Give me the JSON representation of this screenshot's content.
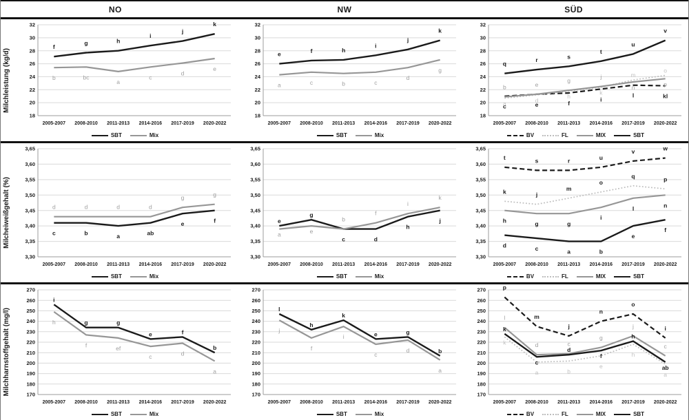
{
  "figure": {
    "columns": [
      "NO",
      "NW",
      "SÜD"
    ],
    "categories": [
      "2005-2007",
      "2008-2010",
      "2011-2013",
      "2014-2016",
      "2017-2019",
      "2020-2022"
    ],
    "colors": {
      "black": "#1a1a1a",
      "gray": "#969696",
      "light_gray": "#bfbfbf",
      "grid": "#d9d9d9",
      "axis": "#9b9b9b",
      "label_gray": "#9f9f9f",
      "label_light": "#c2c2c2",
      "rule": "#111111"
    },
    "styles": {
      "solid_black": {
        "stroke": "#1a1a1a",
        "width": 2.4,
        "dash": ""
      },
      "solid_gray": {
        "stroke": "#969696",
        "width": 2.2,
        "dash": ""
      },
      "dashed_black": {
        "stroke": "#1a1a1a",
        "width": 2.2,
        "dash": "7 4"
      },
      "dotted_light": {
        "stroke": "#bdbdbd",
        "width": 1.7,
        "dash": "1.8 2.6"
      }
    },
    "rows": [
      {
        "ylabel": "Milchleistung (kg/d)",
        "ymin": 18,
        "ymax": 32,
        "yticks": [
          "18",
          "20",
          "22",
          "24",
          "26",
          "28",
          "30",
          "32"
        ]
      },
      {
        "ylabel": "Milcheiweißgehalt (%)",
        "ymin": 3.3,
        "ymax": 3.65,
        "yticks": [
          "3,30",
          "3,35",
          "3,40",
          "3,45",
          "3,50",
          "3,55",
          "3,60",
          "3,65"
        ]
      },
      {
        "ylabel": "Milchharnstoffgehalt (mg/l)",
        "ymin": 170,
        "ymax": 270,
        "yticks": [
          "170",
          "180",
          "190",
          "200",
          "210",
          "220",
          "230",
          "240",
          "250",
          "260",
          "270"
        ]
      }
    ]
  },
  "chart_data": [
    {
      "type": "line",
      "row": 0,
      "col": 0,
      "region": "NO",
      "metric": "milchleistung",
      "ylabel": "Milchleistung (kg/d)",
      "ylim": [
        18,
        32
      ],
      "grid": true,
      "legend_position": "bottom",
      "categories": [
        "2005-2007",
        "2008-2010",
        "2011-2013",
        "2014-2016",
        "2017-2019",
        "2020-2022"
      ],
      "series": [
        {
          "name": "SBT",
          "style": "solid_black",
          "label_color": "black",
          "values": [
            27.1,
            27.7,
            28.0,
            28.8,
            29.5,
            30.6
          ],
          "point_labels": [
            "f",
            "g",
            "h",
            "i",
            "j",
            "k"
          ],
          "label_pos": [
            "a2",
            "a2",
            "a2",
            "a2",
            "a2",
            "a2"
          ]
        },
        {
          "name": "Mix",
          "style": "solid_gray",
          "label_color": "gray",
          "values": [
            25.4,
            25.5,
            24.8,
            25.5,
            26.1,
            26.8
          ],
          "point_labels": [
            "b",
            "bc",
            "a",
            "c",
            "d",
            "e"
          ],
          "label_pos": [
            "b2",
            "b2",
            "b2",
            "b2",
            "b2",
            "b2"
          ]
        }
      ]
    },
    {
      "type": "line",
      "row": 0,
      "col": 1,
      "region": "NW",
      "metric": "milchleistung",
      "ylabel": "Milchleistung (kg/d)",
      "ylim": [
        18,
        32
      ],
      "grid": true,
      "legend_position": "bottom",
      "categories": [
        "2005-2007",
        "2008-2010",
        "2011-2013",
        "2014-2016",
        "2017-2019",
        "2020-2022"
      ],
      "series": [
        {
          "name": "SBT",
          "style": "solid_black",
          "label_color": "black",
          "values": [
            26.0,
            26.5,
            26.6,
            27.3,
            28.2,
            29.6
          ],
          "point_labels": [
            "e",
            "f",
            "h",
            "i",
            "j",
            "k"
          ],
          "label_pos": [
            "a2",
            "a2",
            "a2",
            "a2",
            "a2",
            "a2"
          ]
        },
        {
          "name": "Mix",
          "style": "solid_gray",
          "label_color": "gray",
          "values": [
            24.3,
            24.7,
            24.5,
            24.7,
            25.4,
            26.6
          ],
          "point_labels": [
            "a",
            "c",
            "b",
            "c",
            "d",
            "g"
          ],
          "label_pos": [
            "b2",
            "b2",
            "b2",
            "b2",
            "b2",
            "b2"
          ]
        }
      ]
    },
    {
      "type": "line",
      "row": 0,
      "col": 2,
      "region": "SÜD",
      "metric": "milchleistung",
      "ylabel": "Milchleistung (kg/d)",
      "ylim": [
        18,
        32
      ],
      "grid": true,
      "legend_position": "bottom",
      "categories": [
        "2005-2007",
        "2008-2010",
        "2011-2013",
        "2014-2016",
        "2017-2019",
        "2020-2022"
      ],
      "series": [
        {
          "name": "BV",
          "style": "dashed_black",
          "label_color": "black",
          "values": [
            21.0,
            21.3,
            21.5,
            22.1,
            22.7,
            22.6
          ],
          "point_labels": [
            "c",
            "e",
            "f",
            "i",
            "l",
            "kl"
          ],
          "label_pos": [
            "b2",
            "b2",
            "b2",
            "b2",
            "b2",
            "b2"
          ]
        },
        {
          "name": "FL",
          "style": "dotted_light",
          "label_color": "light",
          "values": [
            20.7,
            21.2,
            21.8,
            22.4,
            23.5,
            24.2
          ],
          "point_labels": [
            "a",
            "d",
            "h",
            "k",
            "m",
            "o"
          ],
          "label_pos": [
            "b",
            "b",
            "b",
            "b",
            "a",
            "a"
          ]
        },
        {
          "name": "MIX",
          "style": "solid_gray",
          "label_color": "gray",
          "values": [
            20.9,
            21.3,
            21.9,
            22.5,
            23.2,
            23.7
          ],
          "point_labels": [
            "b",
            "e",
            "g",
            "j",
            "n",
            "p"
          ],
          "label_pos": [
            "a2",
            "a2",
            "a2",
            "a2",
            "b",
            "b"
          ]
        },
        {
          "name": "SBT",
          "style": "solid_black",
          "label_color": "black",
          "values": [
            24.5,
            25.1,
            25.6,
            26.4,
            27.5,
            29.6
          ],
          "point_labels": [
            "q",
            "r",
            "s",
            "t",
            "u",
            "v"
          ],
          "label_pos": [
            "a2",
            "a2",
            "a2",
            "a2",
            "a2",
            "a2"
          ]
        }
      ]
    },
    {
      "type": "line",
      "row": 1,
      "col": 0,
      "region": "NO",
      "metric": "milcheiweissgehalt",
      "ylabel": "Milcheiweißgehalt (%)",
      "ylim": [
        3.3,
        3.65
      ],
      "grid": true,
      "legend_position": "bottom",
      "categories": [
        "2005-2007",
        "2008-2010",
        "2011-2013",
        "2014-2016",
        "2017-2019",
        "2020-2022"
      ],
      "series": [
        {
          "name": "SBT",
          "style": "solid_black",
          "label_color": "black",
          "values": [
            3.41,
            3.41,
            3.4,
            3.41,
            3.44,
            3.45
          ],
          "point_labels": [
            "c",
            "b",
            "a",
            "ab",
            "e",
            "f"
          ],
          "label_pos": [
            "b2",
            "b2",
            "b2",
            "b2",
            "b2",
            "b2"
          ]
        },
        {
          "name": "Mix",
          "style": "solid_gray",
          "label_color": "gray",
          "values": [
            3.43,
            3.43,
            3.43,
            3.43,
            3.46,
            3.47
          ],
          "point_labels": [
            "d",
            "d",
            "d",
            "d",
            "g",
            "g"
          ],
          "label_pos": [
            "a2",
            "a2",
            "a2",
            "a2",
            "a2",
            "a2"
          ]
        }
      ]
    },
    {
      "type": "line",
      "row": 1,
      "col": 1,
      "region": "NW",
      "metric": "milcheiweissgehalt",
      "ylabel": "Milcheiweißgehalt (%)",
      "ylim": [
        3.3,
        3.65
      ],
      "grid": true,
      "legend_position": "bottom",
      "categories": [
        "2005-2007",
        "2008-2010",
        "2011-2013",
        "2014-2016",
        "2017-2019",
        "2020-2022"
      ],
      "series": [
        {
          "name": "SBT",
          "style": "solid_black",
          "label_color": "black",
          "values": [
            3.4,
            3.42,
            3.39,
            3.39,
            3.43,
            3.45
          ],
          "point_labels": [
            "e",
            "g",
            "c",
            "d",
            "h",
            "j"
          ],
          "label_pos": [
            "a",
            "a",
            "b2",
            "b2",
            "b2",
            "b2"
          ]
        },
        {
          "name": "Mix",
          "style": "solid_gray",
          "label_color": "gray",
          "values": [
            3.39,
            3.4,
            3.39,
            3.41,
            3.44,
            3.46
          ],
          "point_labels": [
            "a",
            "e",
            "b",
            "f",
            "i",
            "k"
          ],
          "label_pos": [
            "b",
            "b",
            "a2",
            "a2",
            "a2",
            "a2"
          ]
        }
      ]
    },
    {
      "type": "line",
      "row": 1,
      "col": 2,
      "region": "SÜD",
      "metric": "milcheiweissgehalt",
      "ylabel": "Milcheiweißgehalt (%)",
      "ylim": [
        3.3,
        3.65
      ],
      "grid": true,
      "legend_position": "bottom",
      "categories": [
        "2005-2007",
        "2008-2010",
        "2011-2013",
        "2014-2016",
        "2017-2019",
        "2020-2022"
      ],
      "series": [
        {
          "name": "BV",
          "style": "dashed_black",
          "label_color": "black",
          "values": [
            3.59,
            3.58,
            3.58,
            3.59,
            3.61,
            3.62
          ],
          "point_labels": [
            "t",
            "s",
            "r",
            "u",
            "v",
            "w"
          ],
          "label_pos": [
            "a2",
            "a2",
            "a2",
            "a2",
            "a2",
            "a2"
          ]
        },
        {
          "name": "FL",
          "style": "dotted_light",
          "label_color": "black",
          "values": [
            3.48,
            3.47,
            3.49,
            3.51,
            3.53,
            3.52
          ],
          "point_labels": [
            "k",
            "j",
            "m",
            "o",
            "q",
            "p"
          ],
          "label_pos": [
            "a2",
            "a2",
            "a2",
            "a2",
            "a2",
            "a2"
          ]
        },
        {
          "name": "MIX",
          "style": "solid_gray",
          "label_color": "black",
          "values": [
            3.45,
            3.44,
            3.44,
            3.46,
            3.49,
            3.5
          ],
          "point_labels": [
            "h",
            "g",
            "g",
            "i",
            "l",
            "n"
          ],
          "label_pos": [
            "b2",
            "b2",
            "b2",
            "b2",
            "b2",
            "b2"
          ]
        },
        {
          "name": "SBT",
          "style": "solid_black",
          "label_color": "black",
          "values": [
            3.37,
            3.36,
            3.35,
            3.35,
            3.4,
            3.42
          ],
          "point_labels": [
            "d",
            "c",
            "a",
            "b",
            "e",
            "f"
          ],
          "label_pos": [
            "b2",
            "b2",
            "b2",
            "b2",
            "b2",
            "b2"
          ]
        }
      ]
    },
    {
      "type": "line",
      "row": 2,
      "col": 0,
      "region": "NO",
      "metric": "milchharnstoffgehalt",
      "ylabel": "Milchharnstoffgehalt (mg/l)",
      "ylim": [
        170,
        270
      ],
      "grid": true,
      "legend_position": "bottom",
      "categories": [
        "2005-2007",
        "2008-2010",
        "2011-2013",
        "2014-2016",
        "2017-2019",
        "2020-2022"
      ],
      "series": [
        {
          "name": "SBT",
          "style": "solid_black",
          "label_color": "black",
          "values": [
            256,
            234,
            234,
            223,
            225,
            210
          ],
          "point_labels": [
            "i",
            "g",
            "g",
            "e",
            "f",
            "b"
          ],
          "label_pos": [
            "a",
            "a",
            "a",
            "a",
            "a",
            "a"
          ]
        },
        {
          "name": "Mix",
          "style": "solid_gray",
          "label_color": "gray",
          "values": [
            249,
            227,
            224,
            216,
            219,
            202
          ],
          "point_labels": [
            "h",
            "f",
            "ef",
            "c",
            "d",
            "a"
          ],
          "label_pos": [
            "b2",
            "b2",
            "b2",
            "b2",
            "b2",
            "b2"
          ]
        }
      ]
    },
    {
      "type": "line",
      "row": 2,
      "col": 1,
      "region": "NW",
      "metric": "milchharnstoffgehalt",
      "ylabel": "Milchharnstoffgehalt (mg/l)",
      "ylim": [
        170,
        270
      ],
      "grid": true,
      "legend_position": "bottom",
      "categories": [
        "2005-2007",
        "2008-2010",
        "2011-2013",
        "2014-2016",
        "2017-2019",
        "2020-2022"
      ],
      "series": [
        {
          "name": "SBT",
          "style": "solid_black",
          "label_color": "black",
          "values": [
            247,
            232,
            241,
            223,
            225,
            207
          ],
          "point_labels": [
            "l",
            "h",
            "k",
            "e",
            "g",
            "b"
          ],
          "label_pos": [
            "a",
            "a",
            "a",
            "a",
            "a",
            "a"
          ]
        },
        {
          "name": "Mix",
          "style": "solid_gray",
          "label_color": "gray",
          "values": [
            241,
            224,
            235,
            218,
            222,
            203
          ],
          "point_labels": [
            "j",
            "f",
            "i",
            "c",
            "d",
            "a"
          ],
          "label_pos": [
            "b2",
            "b2",
            "b2",
            "b2",
            "b2",
            "b2"
          ]
        }
      ]
    },
    {
      "type": "line",
      "row": 2,
      "col": 2,
      "region": "SÜD",
      "metric": "milchharnstoffgehalt",
      "ylabel": "Milchharnstoffgehalt (mg/l)",
      "ylim": [
        170,
        270
      ],
      "grid": true,
      "legend_position": "bottom",
      "categories": [
        "2005-2007",
        "2008-2010",
        "2011-2013",
        "2014-2016",
        "2017-2019",
        "2020-2022"
      ],
      "series": [
        {
          "name": "BV",
          "style": "dashed_black",
          "label_color": "black",
          "values": [
            263,
            235,
            226,
            240,
            247,
            224
          ],
          "point_labels": [
            "p",
            "m",
            "j",
            "n",
            "o",
            "i"
          ],
          "label_pos": [
            "a2",
            "a2",
            "a2",
            "a2",
            "a2",
            "a2"
          ]
        },
        {
          "name": "FL",
          "style": "dotted_light",
          "label_color": "light",
          "values": [
            225,
            201,
            202,
            207,
            218,
            199
          ],
          "point_labels": [
            "k",
            "a",
            "b",
            "e",
            "h",
            "a"
          ],
          "label_pos": [
            "b",
            "b2",
            "b2",
            "b2",
            "b2",
            "b2"
          ]
        },
        {
          "name": "MIX",
          "style": "solid_gray",
          "label_color": "gray",
          "values": [
            234,
            208,
            209,
            215,
            226,
            207
          ],
          "point_labels": [
            "l",
            "d",
            "c",
            "g",
            "j",
            "c"
          ],
          "label_pos": [
            "a2",
            "a2",
            "a2",
            "a2",
            "a2",
            "a2"
          ]
        },
        {
          "name": "SBT",
          "style": "solid_black",
          "label_color": "black",
          "values": [
            228,
            206,
            208,
            212,
            221,
            201
          ],
          "point_labels": [
            "k",
            "c",
            "d",
            "f",
            "h",
            "ab"
          ],
          "label_pos": [
            "a",
            "b",
            "a",
            "b",
            "a",
            "b"
          ]
        }
      ]
    }
  ]
}
